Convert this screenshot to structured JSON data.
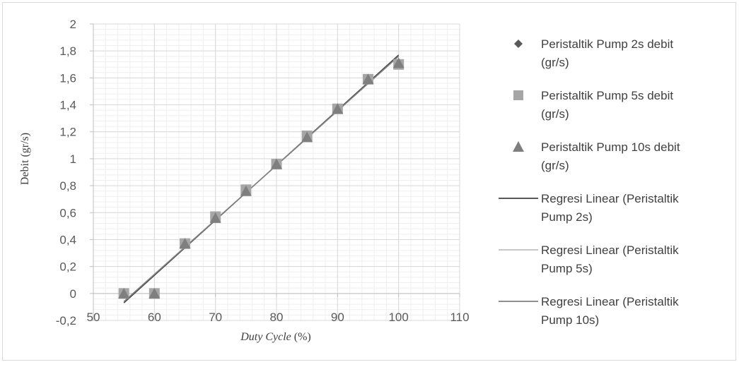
{
  "chart_data": {
    "type": "scatter",
    "title": "",
    "xlabel": {
      "italic": "Duty Cycle",
      "rest": " (%)"
    },
    "ylabel": "Debit (gr/s)",
    "xlim": [
      50,
      110
    ],
    "ylim": [
      -0.2,
      2
    ],
    "xticks": [
      "50",
      "60",
      "70",
      "80",
      "90",
      "100",
      "110"
    ],
    "yticks": [
      "-0,2",
      "0",
      "0,2",
      "0,4",
      "0,6",
      "0,8",
      "1",
      "1,2",
      "1,4",
      "1,6",
      "1,8",
      "2"
    ],
    "grid": true,
    "legend_position": "right",
    "series": [
      {
        "name": "Peristaltik  Pump 2s debit (gr/s)",
        "marker": "diamond",
        "color": "#595959",
        "x": [
          55,
          60,
          65,
          70,
          75,
          80,
          85,
          90,
          95,
          100
        ],
        "y": [
          0,
          0,
          0.36,
          0.56,
          0.76,
          0.96,
          1.16,
          1.37,
          1.58,
          1.7
        ]
      },
      {
        "name": "Peristaltik  Pump 5s debit (gr/s)",
        "marker": "square",
        "color": "#a6a6a6",
        "x": [
          55,
          60,
          65,
          70,
          75,
          80,
          85,
          90,
          95,
          100
        ],
        "y": [
          0,
          0,
          0.37,
          0.57,
          0.77,
          0.96,
          1.17,
          1.37,
          1.59,
          1.7
        ]
      },
      {
        "name": "Peristaltik  Pump 10s debit (gr/s)",
        "marker": "triangle",
        "color": "#7f7f7f",
        "x": [
          55,
          60,
          65,
          70,
          75,
          80,
          85,
          90,
          95,
          100
        ],
        "y": [
          0,
          0,
          0.37,
          0.56,
          0.76,
          0.96,
          1.16,
          1.37,
          1.59,
          1.71
        ]
      }
    ],
    "trendlines": [
      {
        "name": "Regresi Linear (Peristaltik Pump 2s)",
        "color": "#404040",
        "x": [
          55,
          100
        ],
        "y": [
          -0.07,
          1.77
        ]
      },
      {
        "name": "Regresi Linear (Peristaltik Pump 5s)",
        "color": "#bfbfbf",
        "x": [
          55,
          100
        ],
        "y": [
          -0.06,
          1.76
        ]
      },
      {
        "name": "Regresi Linear (Peristaltik Pump 10s)",
        "color": "#7f7f7f",
        "x": [
          55,
          100
        ],
        "y": [
          -0.06,
          1.76
        ]
      }
    ],
    "legend": [
      {
        "kind": "marker",
        "marker": "diamond",
        "color": "#595959",
        "lines": [
          "Peristaltik  Pump 2s debit",
          "(gr/s)"
        ]
      },
      {
        "kind": "marker",
        "marker": "square",
        "color": "#a6a6a6",
        "lines": [
          "Peristaltik  Pump 5s debit",
          "(gr/s)"
        ]
      },
      {
        "kind": "marker",
        "marker": "triangle",
        "color": "#7f7f7f",
        "lines": [
          "Peristaltik  Pump 10s debit",
          "(gr/s)"
        ]
      },
      {
        "kind": "line",
        "color": "#404040",
        "lines": [
          "Regresi Linear (Peristaltik",
          "Pump 2s)"
        ]
      },
      {
        "kind": "line",
        "color": "#bfbfbf",
        "lines": [
          "Regresi Linear (Peristaltik",
          "Pump 5s)"
        ]
      },
      {
        "kind": "line",
        "color": "#7f7f7f",
        "lines": [
          "Regresi Linear (Peristaltik",
          "Pump 10s)"
        ]
      }
    ]
  }
}
